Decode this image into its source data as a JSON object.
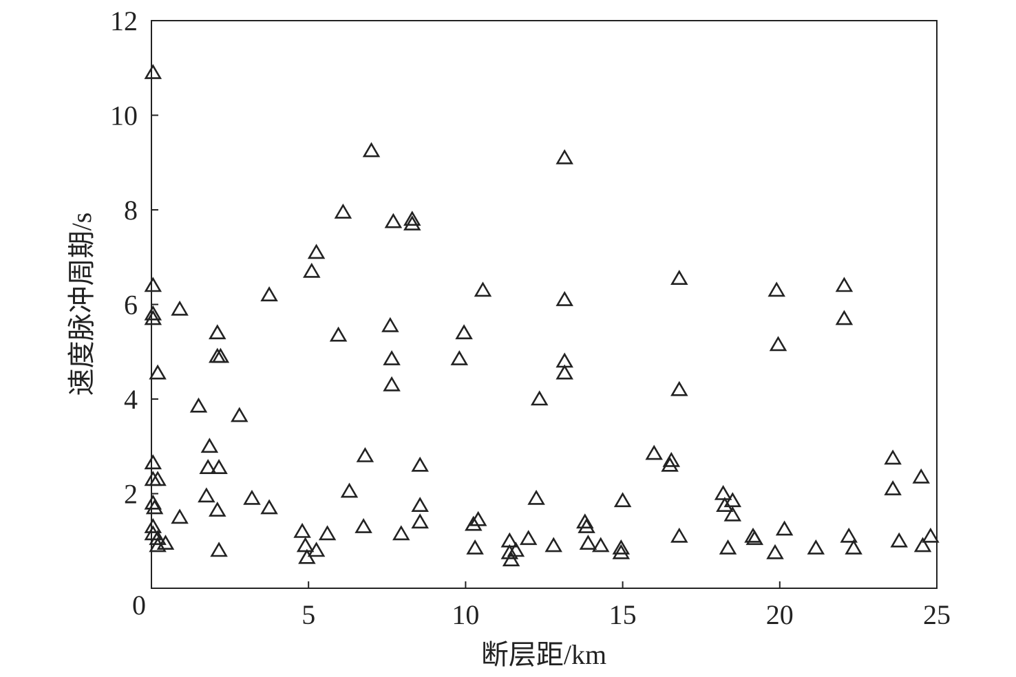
{
  "chart_data": {
    "type": "scatter",
    "xlabel": "断层距/km",
    "ylabel": "速度脉冲周期/s",
    "xlim": [
      0,
      25
    ],
    "ylim": [
      0,
      12
    ],
    "xticks": [
      0,
      5,
      10,
      15,
      20,
      25
    ],
    "yticks": [
      2,
      4,
      6,
      8,
      10,
      12
    ],
    "x_tick_labels": [
      "0",
      "5",
      "10",
      "15",
      "20",
      "25"
    ],
    "y_tick_labels": [
      "2",
      "4",
      "6",
      "8",
      "10",
      "12"
    ],
    "grid": false,
    "marker": "open-triangle",
    "marker_color": "#222222",
    "series": [
      {
        "points": [
          [
            0.05,
            10.9
          ],
          [
            0.05,
            6.4
          ],
          [
            0.05,
            5.8
          ],
          [
            0.05,
            5.7
          ],
          [
            0.2,
            4.55
          ],
          [
            0.05,
            2.65
          ],
          [
            0.05,
            2.3
          ],
          [
            0.2,
            2.3
          ],
          [
            0.05,
            1.8
          ],
          [
            0.1,
            1.7
          ],
          [
            0.05,
            1.3
          ],
          [
            0.05,
            1.15
          ],
          [
            0.2,
            1.05
          ],
          [
            0.2,
            0.9
          ],
          [
            0.45,
            0.95
          ],
          [
            0.9,
            5.9
          ],
          [
            0.9,
            1.5
          ],
          [
            1.5,
            3.85
          ],
          [
            1.8,
            2.55
          ],
          [
            1.85,
            3.0
          ],
          [
            1.75,
            1.95
          ],
          [
            2.1,
            5.4
          ],
          [
            2.1,
            4.9
          ],
          [
            2.2,
            4.9
          ],
          [
            2.15,
            2.55
          ],
          [
            2.1,
            1.65
          ],
          [
            2.15,
            0.8
          ],
          [
            2.8,
            3.65
          ],
          [
            3.2,
            1.9
          ],
          [
            3.75,
            6.2
          ],
          [
            3.75,
            1.7
          ],
          [
            4.8,
            1.2
          ],
          [
            4.9,
            0.9
          ],
          [
            4.95,
            0.65
          ],
          [
            5.1,
            6.7
          ],
          [
            5.25,
            7.1
          ],
          [
            5.25,
            0.8
          ],
          [
            5.6,
            1.15
          ],
          [
            5.95,
            5.35
          ],
          [
            6.1,
            7.95
          ],
          [
            6.3,
            2.05
          ],
          [
            6.75,
            1.3
          ],
          [
            6.8,
            2.8
          ],
          [
            7.0,
            9.25
          ],
          [
            7.6,
            5.55
          ],
          [
            7.65,
            4.85
          ],
          [
            7.65,
            4.3
          ],
          [
            7.7,
            7.75
          ],
          [
            7.95,
            1.15
          ],
          [
            8.3,
            7.8
          ],
          [
            8.3,
            7.7
          ],
          [
            8.55,
            2.6
          ],
          [
            8.55,
            1.75
          ],
          [
            8.55,
            1.4
          ],
          [
            9.8,
            4.85
          ],
          [
            9.95,
            5.4
          ],
          [
            10.25,
            1.35
          ],
          [
            10.4,
            1.45
          ],
          [
            10.3,
            0.85
          ],
          [
            10.55,
            6.3
          ],
          [
            11.4,
            1.0
          ],
          [
            11.4,
            0.75
          ],
          [
            11.45,
            0.6
          ],
          [
            11.6,
            0.8
          ],
          [
            12.0,
            1.05
          ],
          [
            12.25,
            1.9
          ],
          [
            12.35,
            4.0
          ],
          [
            12.8,
            0.9
          ],
          [
            13.15,
            9.1
          ],
          [
            13.15,
            6.1
          ],
          [
            13.15,
            4.8
          ],
          [
            13.15,
            4.55
          ],
          [
            13.8,
            1.4
          ],
          [
            13.85,
            1.3
          ],
          [
            13.9,
            0.95
          ],
          [
            14.3,
            0.9
          ],
          [
            14.95,
            0.75
          ],
          [
            14.95,
            0.85
          ],
          [
            15.0,
            1.85
          ],
          [
            16.0,
            2.85
          ],
          [
            16.55,
            2.7
          ],
          [
            16.5,
            2.6
          ],
          [
            16.8,
            6.55
          ],
          [
            16.8,
            4.2
          ],
          [
            16.8,
            1.1
          ],
          [
            18.2,
            2.0
          ],
          [
            18.25,
            1.75
          ],
          [
            18.5,
            1.85
          ],
          [
            18.5,
            1.55
          ],
          [
            18.35,
            0.85
          ],
          [
            19.15,
            1.1
          ],
          [
            19.2,
            1.05
          ],
          [
            19.85,
            0.75
          ],
          [
            19.9,
            6.3
          ],
          [
            19.95,
            5.15
          ],
          [
            20.15,
            1.25
          ],
          [
            21.15,
            0.85
          ],
          [
            22.05,
            6.4
          ],
          [
            22.05,
            5.7
          ],
          [
            22.2,
            1.1
          ],
          [
            22.35,
            0.85
          ],
          [
            23.6,
            2.75
          ],
          [
            23.6,
            2.1
          ],
          [
            23.8,
            1.0
          ],
          [
            24.5,
            2.35
          ],
          [
            24.55,
            0.9
          ],
          [
            24.8,
            1.1
          ]
        ]
      }
    ]
  }
}
